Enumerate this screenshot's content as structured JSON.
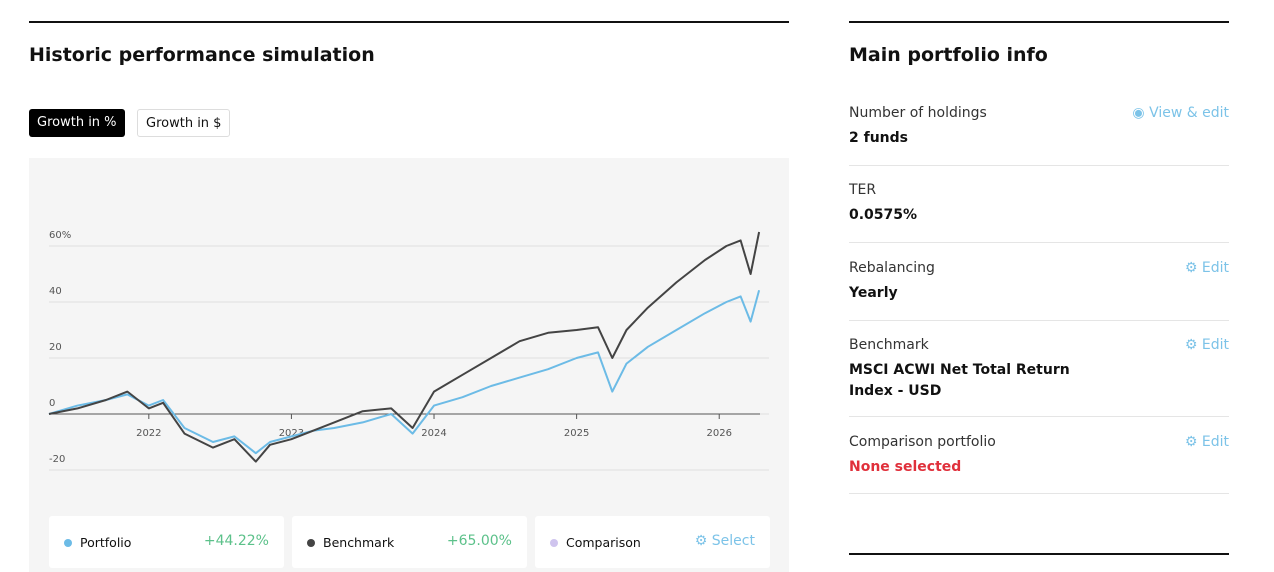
{
  "performance": {
    "title": "Historic performance simulation",
    "toggles": [
      "Growth in %",
      "Growth in $"
    ]
  },
  "chart_data": {
    "type": "line",
    "x": [
      2021.3,
      2021.5,
      2021.7,
      2021.85,
      2022.0,
      2022.1,
      2022.25,
      2022.45,
      2022.6,
      2022.75,
      2022.85,
      2023.0,
      2023.15,
      2023.3,
      2023.5,
      2023.7,
      2023.85,
      2024.0,
      2024.2,
      2024.4,
      2024.6,
      2024.8,
      2025.0,
      2025.15,
      2025.25,
      2025.35,
      2025.5,
      2025.7,
      2025.9,
      2026.05,
      2026.15,
      2026.22,
      2026.28
    ],
    "series": [
      {
        "name": "Portfolio",
        "color": "#6cbbe6",
        "total": 44.22,
        "total_label": "+44.22%",
        "values": [
          0,
          3,
          5,
          7,
          3,
          5,
          -5,
          -10,
          -8,
          -14,
          -10,
          -8,
          -6,
          -5,
          -3,
          0,
          -7,
          3,
          6,
          10,
          13,
          16,
          20,
          22,
          8,
          18,
          24,
          30,
          36,
          40,
          42,
          33,
          44.22
        ]
      },
      {
        "name": "Benchmark",
        "color": "#444444",
        "total": 65.0,
        "total_label": "+65.00%",
        "values": [
          0,
          2,
          5,
          8,
          2,
          4,
          -7,
          -12,
          -9,
          -17,
          -11,
          -9,
          -6,
          -3,
          1,
          2,
          -5,
          8,
          14,
          20,
          26,
          29,
          30,
          31,
          20,
          30,
          38,
          47,
          55,
          60,
          62,
          50,
          65
        ]
      }
    ],
    "comparison": {
      "name": "Comparison",
      "color": "#cfc4ee",
      "action": "Select"
    },
    "xlim": [
      2021.3,
      2026.3
    ],
    "xticks": [
      2022,
      2023,
      2024,
      2025,
      2026
    ],
    "ylim": [
      -25,
      70
    ],
    "yticks": [
      -20,
      0,
      20,
      40,
      {
        "value": 60,
        "label": "60%"
      }
    ],
    "grid": true
  },
  "portfolio_info": {
    "title": "Main portfolio info",
    "rows": [
      {
        "label": "Number of holdings",
        "value": "2 funds",
        "action": "View & edit"
      },
      {
        "label": "TER",
        "value": "0.0575%"
      },
      {
        "label": "Rebalancing",
        "value": "Yearly",
        "action": "Edit"
      },
      {
        "label": "Benchmark",
        "value": "MSCI ACWI Net Total Return Index - USD",
        "action": "Edit"
      },
      {
        "label": "Comparison portfolio",
        "value": "None selected",
        "action": "Edit"
      }
    ]
  }
}
